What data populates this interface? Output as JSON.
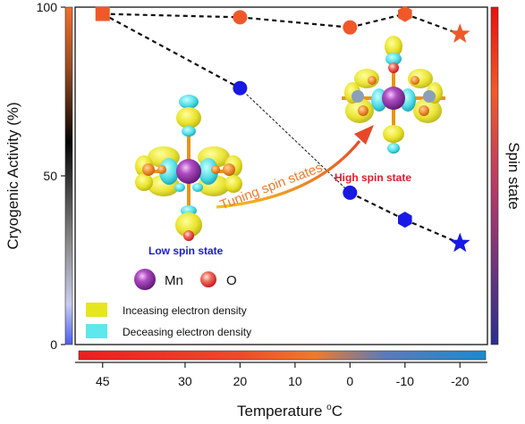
{
  "chart_data": {
    "type": "scatter",
    "title": "",
    "ylabel": "Cryogenic Activity (%)",
    "xlabel": "Temperature ",
    "xlabel_unit_super": "o",
    "xlabel_unit": "C",
    "right_label": "Spin state",
    "ylim": [
      0,
      100
    ],
    "yticks": [
      0,
      50,
      100
    ],
    "xticks": [
      "45",
      "30",
      "20",
      "10",
      "0",
      "-10",
      "-20"
    ],
    "x_min_at_left": 50,
    "x_max_at_right": -25,
    "series": [
      {
        "color": "#f0582a",
        "points": [
          {
            "x": 45,
            "y": 98,
            "marker": "square"
          },
          {
            "x": 20,
            "y": 97,
            "marker": "circle"
          },
          {
            "x": 0,
            "y": 94,
            "marker": "circle"
          },
          {
            "x": -10,
            "y": 98,
            "marker": "hexagon"
          },
          {
            "x": -20,
            "y": 92,
            "marker": "star"
          }
        ]
      },
      {
        "color": "#1919e6",
        "points": [
          {
            "x": 45,
            "y": 98,
            "marker": "square-shared"
          },
          {
            "x": 20,
            "y": 76,
            "marker": "circle"
          },
          {
            "x": 0,
            "y": 45,
            "marker": "circle"
          },
          {
            "x": -10,
            "y": 37,
            "marker": "hexagon"
          },
          {
            "x": -20,
            "y": 30,
            "marker": "star"
          }
        ]
      }
    ],
    "annotations": {
      "tuning": "Tuning spin states",
      "low_spin": "Low spin state",
      "high_spin": "High spin state"
    },
    "legend": {
      "mn": "Mn",
      "o": "O",
      "increase": "Inceasing electron density",
      "decrease": "Deceasing electron density"
    },
    "colors": {
      "orange": "#f0582a",
      "blue": "#1919e6",
      "mn": "#8a2a9c",
      "o": "#e8402a",
      "increase": "#e6e61e",
      "decrease": "#5ce8ec",
      "low_label": "#1a1ad6",
      "high_label": "#e21b2b"
    }
  }
}
